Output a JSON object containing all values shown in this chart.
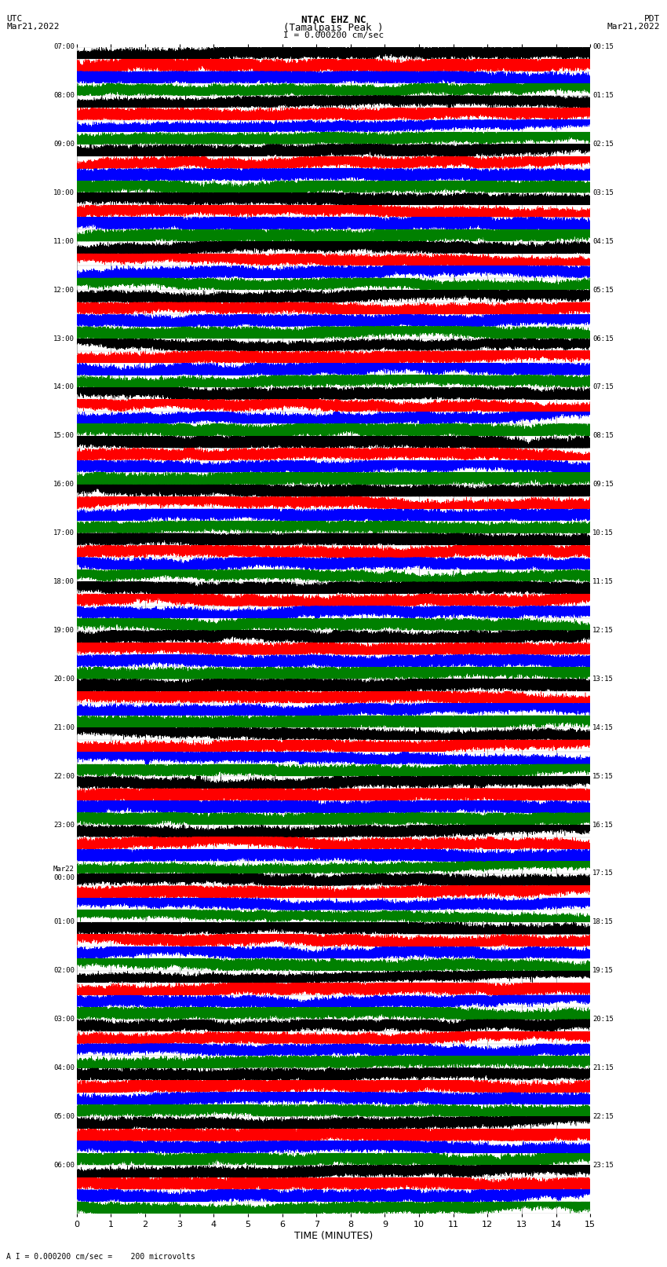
{
  "title_line1": "NTAC EHZ NC",
  "title_line2": "(Tamalpais Peak )",
  "scale_label": "I = 0.000200 cm/sec",
  "left_header_1": "UTC",
  "left_header_2": "Mar21,2022",
  "right_header_1": "PDT",
  "right_header_2": "Mar21,2022",
  "bottom_label": "TIME (MINUTES)",
  "bottom_note": "A I = 0.000200 cm/sec =    200 microvolts",
  "xlabel_ticks": [
    0,
    1,
    2,
    3,
    4,
    5,
    6,
    7,
    8,
    9,
    10,
    11,
    12,
    13,
    14,
    15
  ],
  "utc_labels": [
    "07:00",
    "08:00",
    "09:00",
    "10:00",
    "11:00",
    "12:00",
    "13:00",
    "14:00",
    "15:00",
    "16:00",
    "17:00",
    "18:00",
    "19:00",
    "20:00",
    "21:00",
    "22:00",
    "23:00",
    "Mar22\n00:00",
    "01:00",
    "02:00",
    "03:00",
    "04:00",
    "05:00",
    "06:00"
  ],
  "pdt_labels": [
    "00:15",
    "01:15",
    "02:15",
    "03:15",
    "04:15",
    "05:15",
    "06:15",
    "07:15",
    "08:15",
    "09:15",
    "10:15",
    "11:15",
    "12:15",
    "13:15",
    "14:15",
    "15:15",
    "16:15",
    "17:15",
    "18:15",
    "19:15",
    "20:15",
    "21:15",
    "22:15",
    "23:15"
  ],
  "n_hour_groups": 24,
  "traces_per_group": 4,
  "colors": [
    "black",
    "red",
    "blue",
    "green"
  ],
  "bg_color": "white",
  "grid_color": "#777777",
  "minutes": 15,
  "sample_rate": 50,
  "noise_amplitude": 0.28,
  "figsize": [
    8.5,
    16.13
  ],
  "dpi": 100
}
